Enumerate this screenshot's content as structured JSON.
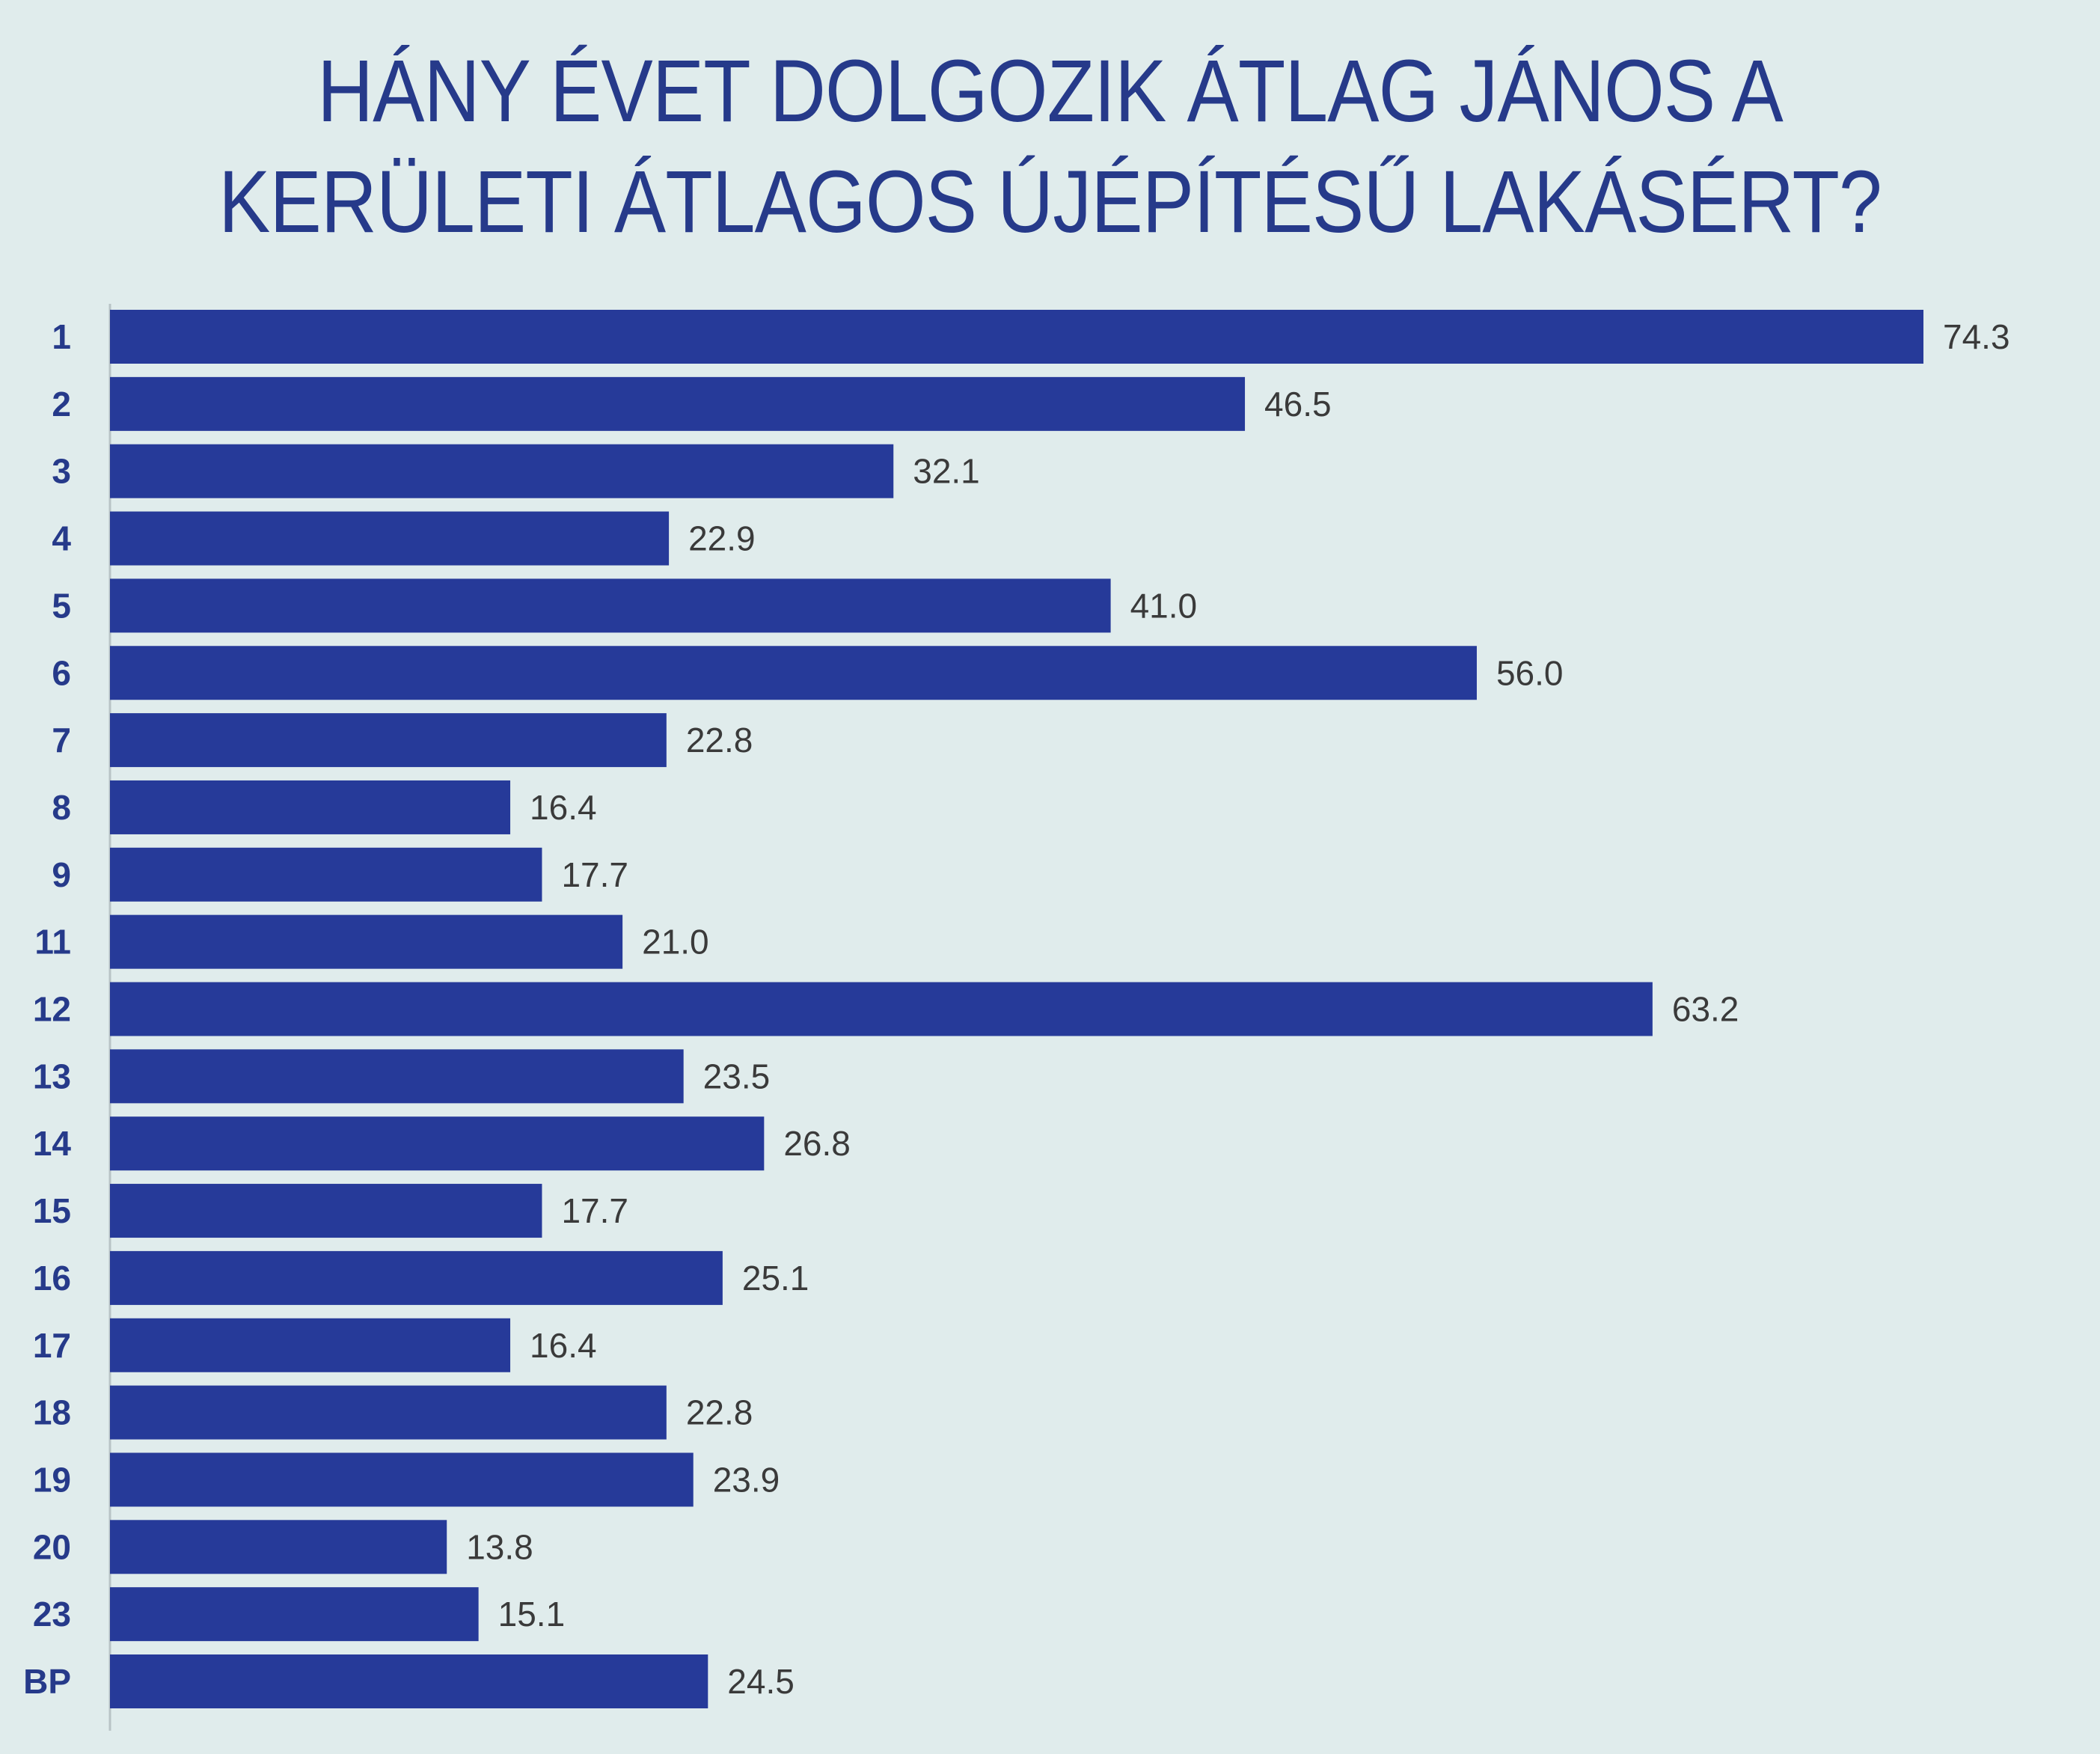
{
  "chart_data": {
    "type": "bar",
    "orientation": "horizontal",
    "title_lines": [
      "HÁNY ÉVET DOLGOZIK ÁTLAG JÁNOS A",
      "KERÜLETI ÁTLAGOS ÚJÉPÍTÉSŰ LAKÁSÉRT?"
    ],
    "categories": [
      "1",
      "2",
      "3",
      "4",
      "5",
      "6",
      "7",
      "8",
      "9",
      "11",
      "12",
      "13",
      "14",
      "15",
      "16",
      "17",
      "18",
      "19",
      "20",
      "23",
      "BP"
    ],
    "values": [
      74.3,
      46.5,
      32.1,
      22.9,
      41.0,
      56.0,
      22.8,
      16.4,
      17.7,
      21.0,
      63.2,
      23.5,
      26.8,
      17.7,
      25.1,
      16.4,
      22.8,
      23.9,
      13.8,
      15.1,
      24.5
    ],
    "value_labels": [
      "74.3",
      "46.5",
      "32.1",
      "22.9",
      "41.0",
      "56.0",
      "22.8",
      "16.4",
      "17.7",
      "21.0",
      "63.2",
      "23.5",
      "26.8",
      "17.7",
      "25.1",
      "16.4",
      "22.8",
      "23.9",
      "13.8",
      "15.1",
      "24.5"
    ],
    "xlim": [
      0,
      74.3
    ],
    "grid": false,
    "legend": "none",
    "colors": {
      "bar": "#263a99",
      "title": "#263a8a",
      "category_label": "#263a8a",
      "value_label": "#3a3a3a",
      "background": "#e0ecec"
    }
  }
}
